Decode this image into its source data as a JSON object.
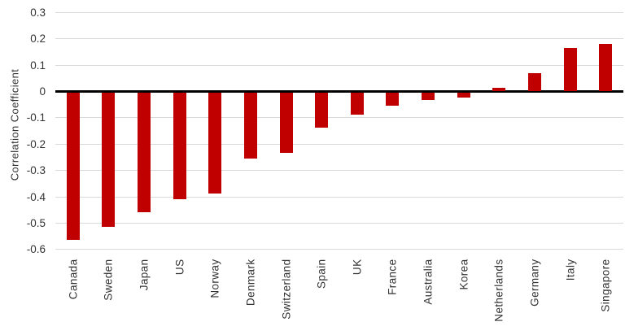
{
  "chart_data": {
    "type": "bar",
    "title": "",
    "xlabel": "",
    "ylabel": "Correlation Coefficient",
    "categories": [
      "Canada",
      "Sweden",
      "Japan",
      "US",
      "Norway",
      "Denmark",
      "Switzerland",
      "Spain",
      "UK",
      "France",
      "Australia",
      "Korea",
      "Netherlands",
      "Germany",
      "Italy",
      "Singapore"
    ],
    "values": [
      -0.56,
      -0.51,
      -0.455,
      -0.405,
      -0.385,
      -0.25,
      -0.23,
      -0.135,
      -0.085,
      -0.05,
      -0.03,
      -0.02,
      0.015,
      0.07,
      0.165,
      0.18
    ],
    "ylim": [
      -0.6,
      0.3
    ],
    "ytick_step": 0.1,
    "ytick_labels": [
      "0.3",
      "0.2",
      "0.1",
      "0",
      "-0.1",
      "-0.2",
      "-0.3",
      "-0.4",
      "-0.5",
      "-0.6"
    ],
    "grid": true,
    "legend": false,
    "bar_color": "#C00000",
    "gridline_color": "#D9D9D9",
    "zero_line_color": "#000000",
    "text_color": "#333333",
    "background_color": "#FFFFFF"
  }
}
